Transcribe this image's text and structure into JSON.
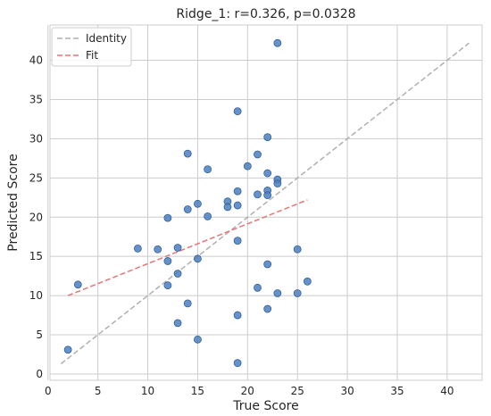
{
  "chart_data": {
    "type": "scatter",
    "title": "Ridge_1: r=0.326, p=0.0328",
    "xlabel": "True Score",
    "ylabel": "Predicted Score",
    "xlim": [
      0.2,
      43.5
    ],
    "ylim": [
      -0.8,
      44.5
    ],
    "xticks": [
      0,
      5,
      10,
      15,
      20,
      25,
      30,
      35,
      40
    ],
    "yticks": [
      0,
      5,
      10,
      15,
      20,
      25,
      30,
      35,
      40
    ],
    "grid": true,
    "legend_position": "top-left",
    "points": {
      "color": "#4c7fbf",
      "x": [
        2,
        3,
        9,
        11,
        12,
        12,
        12,
        13,
        13,
        13,
        14,
        14,
        14,
        15,
        15,
        15,
        16,
        16,
        18,
        18,
        19,
        19,
        19,
        19,
        19,
        19,
        20,
        21,
        21,
        21,
        22,
        22,
        22,
        22,
        22,
        22,
        23,
        23,
        23,
        23,
        25,
        25,
        26
      ],
      "y": [
        3.1,
        11.4,
        16.0,
        15.9,
        19.9,
        14.4,
        11.3,
        16.1,
        12.8,
        6.5,
        28.1,
        21.0,
        9.0,
        21.7,
        14.7,
        4.4,
        26.1,
        20.1,
        22.0,
        21.3,
        33.5,
        23.3,
        21.5,
        17.0,
        7.5,
        1.4,
        26.5,
        28.0,
        22.9,
        11.0,
        30.2,
        25.6,
        23.4,
        22.8,
        14.0,
        8.3,
        42.2,
        24.8,
        24.3,
        10.3,
        15.9,
        10.3,
        11.8
      ]
    },
    "lines": [
      {
        "name": "Identity",
        "x": [
          1.3,
          42.2
        ],
        "y": [
          1.3,
          42.2
        ],
        "color": "#b0b0b0"
      },
      {
        "name": "Fit",
        "x": [
          2,
          26
        ],
        "y": [
          10.0,
          22.2
        ],
        "color": "#e87474"
      }
    ]
  }
}
